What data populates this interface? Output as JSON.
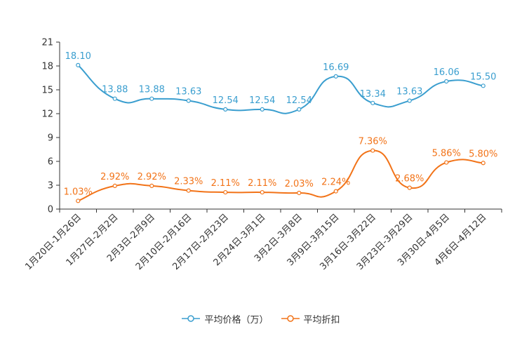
{
  "chart_data": {
    "type": "line",
    "categories": [
      "1月20日-1月26日",
      "1月27日-2月2日",
      "2月3日-2月9日",
      "2月10日-2月16日",
      "2月17日-2月23日",
      "2月24日-3月1日",
      "3月2日-3月8日",
      "3月9日-3月15日",
      "3月16日-3月22日",
      "3月23日-3月29日",
      "3月30日-4月5日",
      "4月6日-4月12日"
    ],
    "ylim": [
      0,
      21
    ],
    "yticks": [
      0,
      3,
      6,
      9,
      12,
      15,
      18,
      21
    ],
    "series": [
      {
        "name": "平均价格（万）",
        "color": "#3a9ecf",
        "values": [
          18.1,
          13.88,
          13.88,
          13.63,
          12.54,
          12.54,
          12.54,
          16.69,
          13.34,
          13.63,
          16.06,
          15.5
        ],
        "labels": [
          "18.10",
          "13.88",
          "13.88",
          "13.63",
          "12.54",
          "12.54",
          "12.54",
          "16.69",
          "13.34",
          "13.63",
          "16.06",
          "15.50"
        ]
      },
      {
        "name": "平均折扣",
        "color": "#f27318",
        "values": [
          1.03,
          2.92,
          2.92,
          2.33,
          2.11,
          2.11,
          2.03,
          2.24,
          7.36,
          2.68,
          5.86,
          5.8
        ],
        "labels": [
          "1.03%",
          "2.92%",
          "2.92%",
          "2.33%",
          "2.11%",
          "2.11%",
          "2.03%",
          "2.24%",
          "7.36%",
          "2.68%",
          "5.86%",
          "5.80%"
        ]
      }
    ],
    "legend": {
      "position": "bottom"
    }
  }
}
